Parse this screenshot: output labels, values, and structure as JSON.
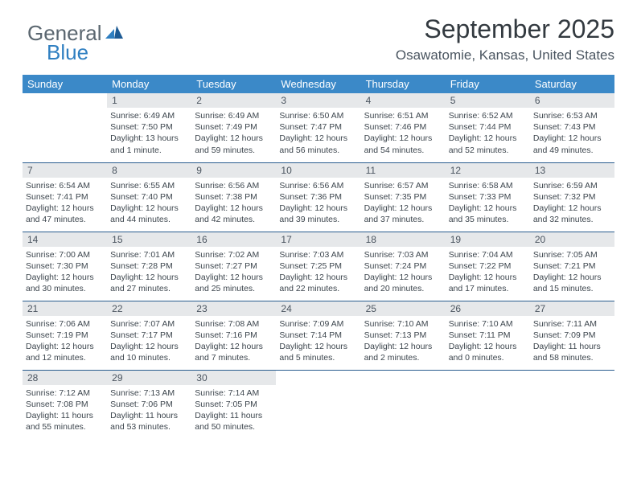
{
  "brand": {
    "part1": "General",
    "part2": "Blue"
  },
  "header": {
    "title": "September 2025",
    "location": "Osawatomie, Kansas, United States"
  },
  "colors": {
    "header_bg": "#3b89c8",
    "header_text": "#ffffff",
    "daynum_bg": "#e6e8ea",
    "cell_border": "#2a5d8f",
    "brand_gray": "#5b6770",
    "brand_blue": "#2f7fc1"
  },
  "weekday_labels": [
    "Sunday",
    "Monday",
    "Tuesday",
    "Wednesday",
    "Thursday",
    "Friday",
    "Saturday"
  ],
  "weeks": [
    [
      {
        "blank": true
      },
      {
        "day": "1",
        "sunrise": "Sunrise: 6:49 AM",
        "sunset": "Sunset: 7:50 PM",
        "daylight1": "Daylight: 13 hours",
        "daylight2": "and 1 minute."
      },
      {
        "day": "2",
        "sunrise": "Sunrise: 6:49 AM",
        "sunset": "Sunset: 7:49 PM",
        "daylight1": "Daylight: 12 hours",
        "daylight2": "and 59 minutes."
      },
      {
        "day": "3",
        "sunrise": "Sunrise: 6:50 AM",
        "sunset": "Sunset: 7:47 PM",
        "daylight1": "Daylight: 12 hours",
        "daylight2": "and 56 minutes."
      },
      {
        "day": "4",
        "sunrise": "Sunrise: 6:51 AM",
        "sunset": "Sunset: 7:46 PM",
        "daylight1": "Daylight: 12 hours",
        "daylight2": "and 54 minutes."
      },
      {
        "day": "5",
        "sunrise": "Sunrise: 6:52 AM",
        "sunset": "Sunset: 7:44 PM",
        "daylight1": "Daylight: 12 hours",
        "daylight2": "and 52 minutes."
      },
      {
        "day": "6",
        "sunrise": "Sunrise: 6:53 AM",
        "sunset": "Sunset: 7:43 PM",
        "daylight1": "Daylight: 12 hours",
        "daylight2": "and 49 minutes."
      }
    ],
    [
      {
        "day": "7",
        "sunrise": "Sunrise: 6:54 AM",
        "sunset": "Sunset: 7:41 PM",
        "daylight1": "Daylight: 12 hours",
        "daylight2": "and 47 minutes."
      },
      {
        "day": "8",
        "sunrise": "Sunrise: 6:55 AM",
        "sunset": "Sunset: 7:40 PM",
        "daylight1": "Daylight: 12 hours",
        "daylight2": "and 44 minutes."
      },
      {
        "day": "9",
        "sunrise": "Sunrise: 6:56 AM",
        "sunset": "Sunset: 7:38 PM",
        "daylight1": "Daylight: 12 hours",
        "daylight2": "and 42 minutes."
      },
      {
        "day": "10",
        "sunrise": "Sunrise: 6:56 AM",
        "sunset": "Sunset: 7:36 PM",
        "daylight1": "Daylight: 12 hours",
        "daylight2": "and 39 minutes."
      },
      {
        "day": "11",
        "sunrise": "Sunrise: 6:57 AM",
        "sunset": "Sunset: 7:35 PM",
        "daylight1": "Daylight: 12 hours",
        "daylight2": "and 37 minutes."
      },
      {
        "day": "12",
        "sunrise": "Sunrise: 6:58 AM",
        "sunset": "Sunset: 7:33 PM",
        "daylight1": "Daylight: 12 hours",
        "daylight2": "and 35 minutes."
      },
      {
        "day": "13",
        "sunrise": "Sunrise: 6:59 AM",
        "sunset": "Sunset: 7:32 PM",
        "daylight1": "Daylight: 12 hours",
        "daylight2": "and 32 minutes."
      }
    ],
    [
      {
        "day": "14",
        "sunrise": "Sunrise: 7:00 AM",
        "sunset": "Sunset: 7:30 PM",
        "daylight1": "Daylight: 12 hours",
        "daylight2": "and 30 minutes."
      },
      {
        "day": "15",
        "sunrise": "Sunrise: 7:01 AM",
        "sunset": "Sunset: 7:28 PM",
        "daylight1": "Daylight: 12 hours",
        "daylight2": "and 27 minutes."
      },
      {
        "day": "16",
        "sunrise": "Sunrise: 7:02 AM",
        "sunset": "Sunset: 7:27 PM",
        "daylight1": "Daylight: 12 hours",
        "daylight2": "and 25 minutes."
      },
      {
        "day": "17",
        "sunrise": "Sunrise: 7:03 AM",
        "sunset": "Sunset: 7:25 PM",
        "daylight1": "Daylight: 12 hours",
        "daylight2": "and 22 minutes."
      },
      {
        "day": "18",
        "sunrise": "Sunrise: 7:03 AM",
        "sunset": "Sunset: 7:24 PM",
        "daylight1": "Daylight: 12 hours",
        "daylight2": "and 20 minutes."
      },
      {
        "day": "19",
        "sunrise": "Sunrise: 7:04 AM",
        "sunset": "Sunset: 7:22 PM",
        "daylight1": "Daylight: 12 hours",
        "daylight2": "and 17 minutes."
      },
      {
        "day": "20",
        "sunrise": "Sunrise: 7:05 AM",
        "sunset": "Sunset: 7:21 PM",
        "daylight1": "Daylight: 12 hours",
        "daylight2": "and 15 minutes."
      }
    ],
    [
      {
        "day": "21",
        "sunrise": "Sunrise: 7:06 AM",
        "sunset": "Sunset: 7:19 PM",
        "daylight1": "Daylight: 12 hours",
        "daylight2": "and 12 minutes."
      },
      {
        "day": "22",
        "sunrise": "Sunrise: 7:07 AM",
        "sunset": "Sunset: 7:17 PM",
        "daylight1": "Daylight: 12 hours",
        "daylight2": "and 10 minutes."
      },
      {
        "day": "23",
        "sunrise": "Sunrise: 7:08 AM",
        "sunset": "Sunset: 7:16 PM",
        "daylight1": "Daylight: 12 hours",
        "daylight2": "and 7 minutes."
      },
      {
        "day": "24",
        "sunrise": "Sunrise: 7:09 AM",
        "sunset": "Sunset: 7:14 PM",
        "daylight1": "Daylight: 12 hours",
        "daylight2": "and 5 minutes."
      },
      {
        "day": "25",
        "sunrise": "Sunrise: 7:10 AM",
        "sunset": "Sunset: 7:13 PM",
        "daylight1": "Daylight: 12 hours",
        "daylight2": "and 2 minutes."
      },
      {
        "day": "26",
        "sunrise": "Sunrise: 7:10 AM",
        "sunset": "Sunset: 7:11 PM",
        "daylight1": "Daylight: 12 hours",
        "daylight2": "and 0 minutes."
      },
      {
        "day": "27",
        "sunrise": "Sunrise: 7:11 AM",
        "sunset": "Sunset: 7:09 PM",
        "daylight1": "Daylight: 11 hours",
        "daylight2": "and 58 minutes."
      }
    ],
    [
      {
        "day": "28",
        "sunrise": "Sunrise: 7:12 AM",
        "sunset": "Sunset: 7:08 PM",
        "daylight1": "Daylight: 11 hours",
        "daylight2": "and 55 minutes."
      },
      {
        "day": "29",
        "sunrise": "Sunrise: 7:13 AM",
        "sunset": "Sunset: 7:06 PM",
        "daylight1": "Daylight: 11 hours",
        "daylight2": "and 53 minutes."
      },
      {
        "day": "30",
        "sunrise": "Sunrise: 7:14 AM",
        "sunset": "Sunset: 7:05 PM",
        "daylight1": "Daylight: 11 hours",
        "daylight2": "and 50 minutes."
      },
      {
        "blank": true
      },
      {
        "blank": true
      },
      {
        "blank": true
      },
      {
        "blank": true
      }
    ]
  ]
}
